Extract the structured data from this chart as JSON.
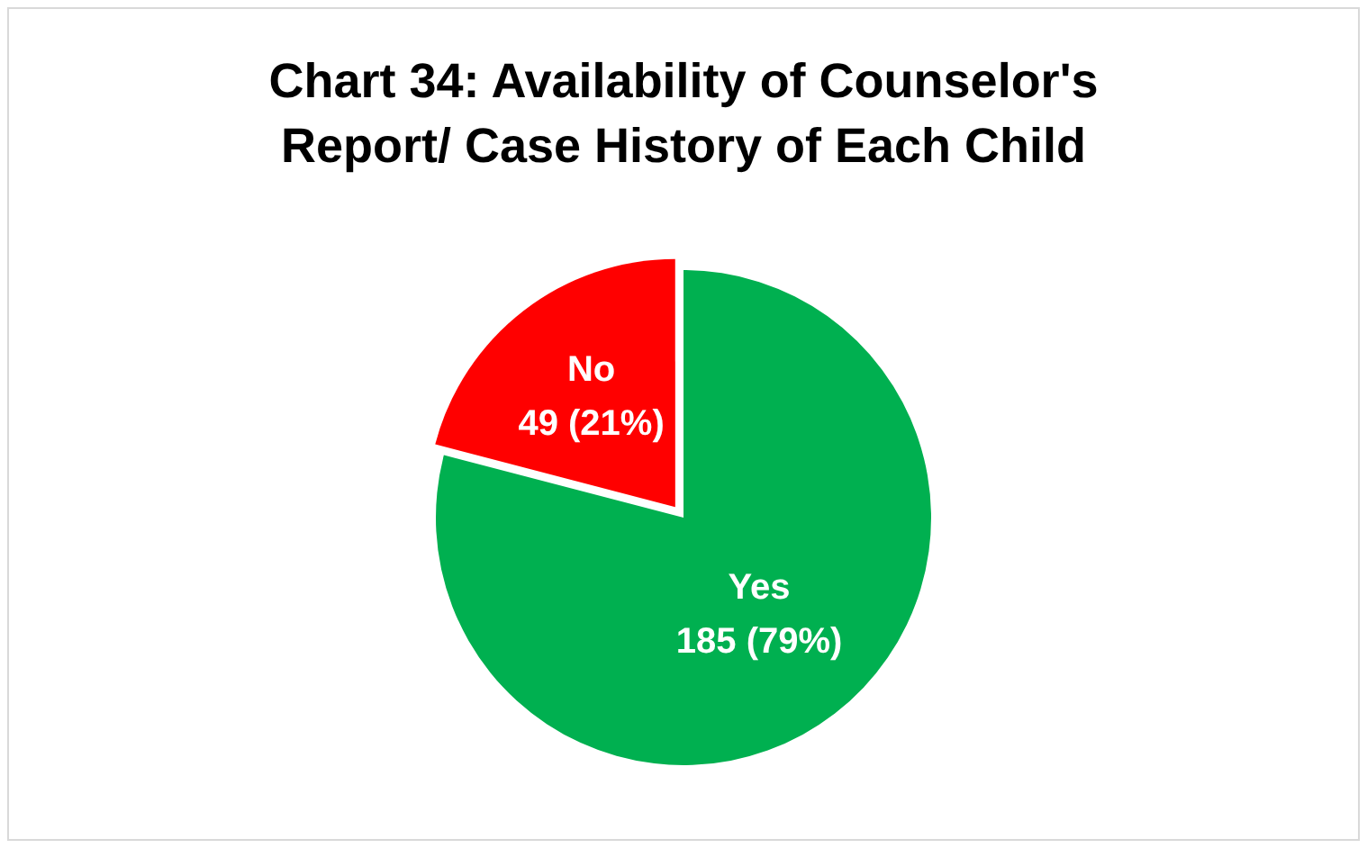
{
  "chart_data": {
    "type": "pie",
    "title": "Chart 34: Availability of Counselor's Report/ Case History of Each Child",
    "categories": [
      "Yes",
      "No"
    ],
    "values": [
      185,
      49
    ],
    "colors": [
      "#00b050",
      "#ff0000"
    ],
    "value_labels": [
      "185 (79%)",
      "49 (21%)"
    ],
    "legend": false
  }
}
